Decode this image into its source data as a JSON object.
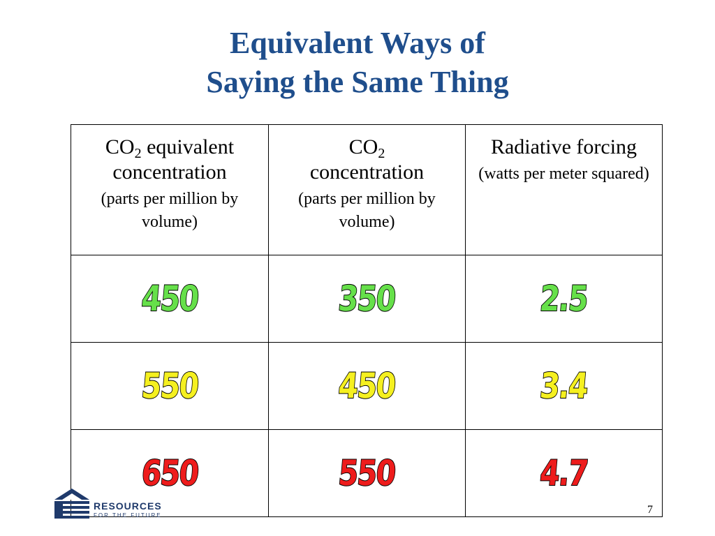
{
  "slide": {
    "title_line1": "Equivalent Ways of",
    "title_line2": "Saying the Same Thing",
    "page_number": "7"
  },
  "table": {
    "headers": [
      {
        "main_prefix": "CO",
        "main_sub": "2",
        "main_suffix": " equivalent concentration",
        "unit": "(parts per million by volume)"
      },
      {
        "main_prefix": "CO",
        "main_sub": "2",
        "main_suffix": " concentration",
        "unit": "(parts per million by volume)"
      },
      {
        "main_prefix": "Radiative forcing",
        "main_sub": "",
        "main_suffix": "",
        "unit": "(watts per meter squared)"
      }
    ],
    "rows": [
      {
        "color": "#66e04a",
        "cells": [
          "450",
          "350",
          "2.5"
        ]
      },
      {
        "color": "#f5f020",
        "cells": [
          "550",
          "450",
          "3.4"
        ]
      },
      {
        "color": "#ee1c1c",
        "cells": [
          "650",
          "550",
          "4.7"
        ]
      }
    ]
  },
  "logo": {
    "name": "RESOURCES",
    "tagline": "FOR THE FUTURE",
    "icon": "house-stripes-icon",
    "color": "#1f3a6b"
  }
}
